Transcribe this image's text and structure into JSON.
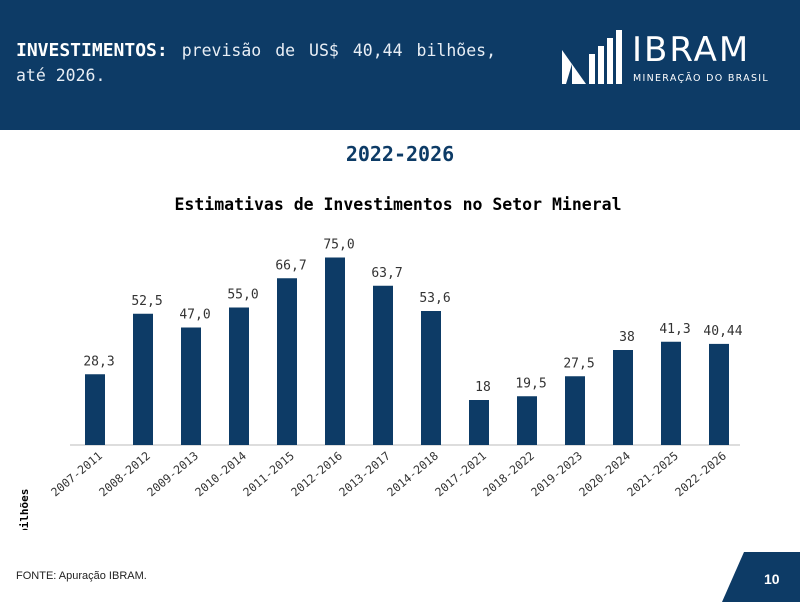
{
  "header": {
    "title_bold": "INVESTIMENTOS:",
    "title_rest": "previsão de US$ 40,44 bilhões, até 2026."
  },
  "logo": {
    "name": "IBRAM",
    "subtitle": "MINERAÇÃO DO BRASIL"
  },
  "period": "2022-2026",
  "footer": {
    "source": "FONTE: Apuração IBRAM.",
    "page_number": "10"
  },
  "colors": {
    "primary": "#0d3b66",
    "bar": "#0d3b66"
  },
  "chart_data": {
    "type": "bar",
    "title": "Estimativas de Investimentos no Setor Mineral",
    "xlabel": "",
    "ylabel": "US$ bilhões",
    "ylim": [
      0,
      80
    ],
    "categories": [
      "2007-2011",
      "2008-2012",
      "2009-2013",
      "2010-2014",
      "2011-2015",
      "2012-2016",
      "2013-2017",
      "2014-2018",
      "2017-2021",
      "2018-2022",
      "2019-2023",
      "2020-2024",
      "2021-2025",
      "2022-2026"
    ],
    "values": [
      28.3,
      52.5,
      47.0,
      55.0,
      66.7,
      75.0,
      63.7,
      53.6,
      18,
      19.5,
      27.5,
      38,
      41.3,
      40.44
    ],
    "labels": [
      "28,3",
      "52,5",
      "47,0",
      "55,0",
      "66,7",
      "75,0",
      "63,7",
      "53,6",
      "18",
      "19,5",
      "27,5",
      "38",
      "41,3",
      "40,44"
    ]
  }
}
